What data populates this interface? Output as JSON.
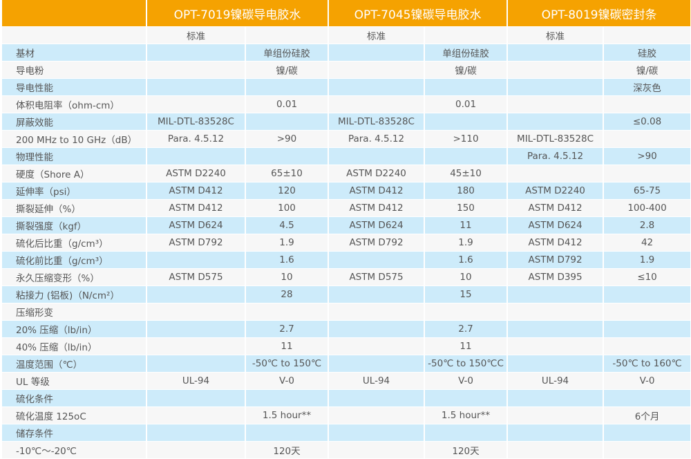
{
  "header": {
    "products": [
      "OPT-7019镍碳导电胶水",
      "OPT-7045镍碳导电胶水",
      "OPT-8019镍碳密封条"
    ],
    "standard_label": "标准"
  },
  "rows": [
    {
      "label": "基材",
      "cells": [
        "",
        "单组份硅胶",
        "",
        "单组份硅胶",
        "",
        "硅胶"
      ]
    },
    {
      "label": "导电粉",
      "cells": [
        "",
        "镍/碳",
        "",
        "镍/碳",
        "",
        "镍/碳"
      ]
    },
    {
      "label": "导电性能",
      "cells": [
        "",
        "",
        "",
        "",
        "",
        "深灰色"
      ]
    },
    {
      "label": "体积电阻率（ohm-cm）",
      "cells": [
        "",
        "0.01",
        "",
        "0.01",
        "",
        ""
      ]
    },
    {
      "label": "屏蔽效能",
      "cells": [
        "MIL-DTL-83528C",
        "",
        "MIL-DTL-83528C",
        "",
        "",
        "≤0.08"
      ]
    },
    {
      "label": "200 MHz to 10 GHz（dB）",
      "cells": [
        "Para. 4.5.12",
        ">90",
        "Para. 4.5.12",
        ">110",
        "MIL-DTL-83528C",
        ""
      ]
    },
    {
      "label": "物理性能",
      "cells": [
        "",
        "",
        "",
        "",
        "Para. 4.5.12",
        ">90"
      ]
    },
    {
      "label": "硬度（Shore A）",
      "cells": [
        "ASTM D2240",
        "65±10",
        "ASTM D2240",
        "45±10",
        "",
        ""
      ]
    },
    {
      "label": "延伸率（psi）",
      "cells": [
        "ASTM D412",
        "120",
        "ASTM D412",
        "180",
        "ASTM D2240",
        "65-75"
      ]
    },
    {
      "label": "撕裂延伸（%）",
      "cells": [
        "ASTM D412",
        "100",
        "ASTM D412",
        "150",
        "ASTM D412",
        "100-400"
      ]
    },
    {
      "label": "撕裂强度（kgf）",
      "cells": [
        "ASTM D624",
        "4.5",
        "ASTM D624",
        "11",
        "ASTM D624",
        "2.8"
      ]
    },
    {
      "label": "硫化后比重（g/cm³）",
      "cells": [
        "ASTM D792",
        "1.9",
        "ASTM D792",
        "1.9",
        "ASTM D412",
        "42"
      ]
    },
    {
      "label": "硫化前比重（g/cm³）",
      "cells": [
        "",
        "1.6",
        "",
        "1.6",
        "ASTM D792",
        "1.9"
      ]
    },
    {
      "label": "永久压缩变形（%）",
      "cells": [
        "ASTM D575",
        "10",
        "ASTM D575",
        "10",
        "ASTM D395",
        "≤10"
      ]
    },
    {
      "label": "粘接力 (铝板)（N/cm²）",
      "cells": [
        "",
        "28",
        "",
        "15",
        "",
        ""
      ]
    },
    {
      "label": "压缩形变",
      "cells": [
        "",
        "",
        "",
        "",
        "",
        ""
      ]
    },
    {
      "label": "20% 压缩（lb/in）",
      "cells": [
        "",
        "2.7",
        "",
        "2.7",
        "",
        ""
      ]
    },
    {
      "label": "40% 压缩（lb/in）",
      "cells": [
        "",
        "11",
        "",
        "11",
        "",
        ""
      ]
    },
    {
      "label": "温度范围（℃）",
      "cells": [
        "",
        "-50℃ to 150℃",
        "",
        "-50℃ to 150℃C",
        "",
        "-50℃ to 160℃"
      ]
    },
    {
      "label": "UL 等级",
      "cells": [
        "UL-94",
        "V-0",
        "UL-94",
        "V-0",
        "UL-94",
        "V-0"
      ]
    },
    {
      "label": "硫化条件",
      "cells": [
        "",
        "",
        "",
        "",
        "",
        ""
      ]
    },
    {
      "label": "硫化温度 125oC",
      "cells": [
        "",
        "1.5 hour**",
        "",
        "1.5 hour**",
        "",
        "6个月"
      ]
    },
    {
      "label": "储存条件",
      "cells": [
        "",
        "",
        "",
        "",
        "",
        ""
      ]
    },
    {
      "label": "-10℃～-20℃",
      "cells": [
        "",
        "120天",
        "",
        "120天",
        "",
        ""
      ]
    }
  ],
  "colors": {
    "header": "#f5a201",
    "row_blue": "#cdebfa",
    "row_white": "#f7f7f7",
    "text": "#555555"
  }
}
